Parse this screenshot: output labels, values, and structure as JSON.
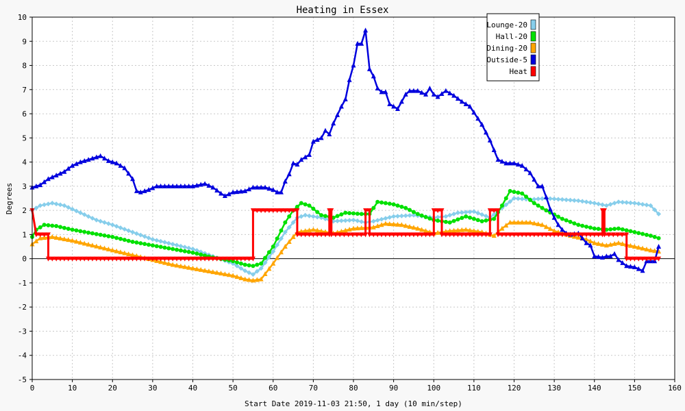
{
  "chart_data": {
    "type": "line",
    "title": "Heating in Essex",
    "xlabel": "Start Date 2019-11-03 21:50, 1 day (10 min/step)",
    "ylabel": "Degrees",
    "xlim": [
      0,
      160
    ],
    "ylim": [
      -5,
      10
    ],
    "x_ticks": [
      0,
      10,
      20,
      30,
      40,
      50,
      60,
      70,
      80,
      90,
      100,
      110,
      120,
      130,
      140,
      150,
      160
    ],
    "y_ticks": [
      -5,
      -4,
      -3,
      -2,
      -1,
      0,
      1,
      2,
      3,
      4,
      5,
      6,
      7,
      8,
      9,
      10
    ],
    "grid": true,
    "legend_position": "top-right",
    "series": [
      {
        "name": "Lounge-20",
        "color": "#87ceeb",
        "marker": "diamond",
        "points": [
          [
            0,
            2
          ],
          [
            2,
            2.2
          ],
          [
            5,
            2.3
          ],
          [
            8,
            2.2
          ],
          [
            12,
            1.9
          ],
          [
            16,
            1.6
          ],
          [
            20,
            1.4
          ],
          [
            25,
            1.1
          ],
          [
            30,
            0.8
          ],
          [
            35,
            0.6
          ],
          [
            40,
            0.4
          ],
          [
            45,
            0.1
          ],
          [
            50,
            -0.2
          ],
          [
            53,
            -0.5
          ],
          [
            55,
            -0.65
          ],
          [
            57,
            -0.4
          ],
          [
            60,
            0.3
          ],
          [
            63,
            1.1
          ],
          [
            66,
            1.7
          ],
          [
            68,
            1.8
          ],
          [
            72,
            1.7
          ],
          [
            75,
            1.55
          ],
          [
            80,
            1.6
          ],
          [
            83,
            1.5
          ],
          [
            85,
            1.55
          ],
          [
            90,
            1.75
          ],
          [
            95,
            1.8
          ],
          [
            100,
            1.7
          ],
          [
            103,
            1.75
          ],
          [
            106,
            1.9
          ],
          [
            110,
            1.95
          ],
          [
            114,
            1.7
          ],
          [
            117,
            2.1
          ],
          [
            120,
            2.5
          ],
          [
            124,
            2.45
          ],
          [
            128,
            2.5
          ],
          [
            132,
            2.45
          ],
          [
            136,
            2.4
          ],
          [
            140,
            2.3
          ],
          [
            143,
            2.2
          ],
          [
            146,
            2.35
          ],
          [
            150,
            2.3
          ],
          [
            154,
            2.2
          ],
          [
            156,
            1.85
          ]
        ]
      },
      {
        "name": "Hall-20",
        "color": "#00e000",
        "marker": "circle",
        "points": [
          [
            0,
            0.9
          ],
          [
            1,
            1.2
          ],
          [
            3,
            1.4
          ],
          [
            6,
            1.35
          ],
          [
            10,
            1.2
          ],
          [
            15,
            1.05
          ],
          [
            20,
            0.9
          ],
          [
            25,
            0.7
          ],
          [
            30,
            0.55
          ],
          [
            35,
            0.4
          ],
          [
            40,
            0.25
          ],
          [
            45,
            0.05
          ],
          [
            50,
            -0.1
          ],
          [
            53,
            -0.25
          ],
          [
            55,
            -0.3
          ],
          [
            57,
            -0.2
          ],
          [
            60,
            0.5
          ],
          [
            63,
            1.5
          ],
          [
            65,
            2
          ],
          [
            67,
            2.3
          ],
          [
            69,
            2.2
          ],
          [
            72,
            1.8
          ],
          [
            75,
            1.7
          ],
          [
            78,
            1.9
          ],
          [
            82,
            1.85
          ],
          [
            84,
            1.85
          ],
          [
            86,
            2.35
          ],
          [
            90,
            2.25
          ],
          [
            93,
            2.1
          ],
          [
            96,
            1.85
          ],
          [
            100,
            1.6
          ],
          [
            104,
            1.5
          ],
          [
            108,
            1.75
          ],
          [
            112,
            1.55
          ],
          [
            115,
            1.65
          ],
          [
            117,
            2.2
          ],
          [
            119,
            2.8
          ],
          [
            122,
            2.7
          ],
          [
            125,
            2.3
          ],
          [
            128,
            2.0
          ],
          [
            132,
            1.65
          ],
          [
            136,
            1.4
          ],
          [
            140,
            1.25
          ],
          [
            143,
            1.2
          ],
          [
            146,
            1.25
          ],
          [
            150,
            1.1
          ],
          [
            154,
            0.95
          ],
          [
            156,
            0.85
          ]
        ]
      },
      {
        "name": "Dining-20",
        "color": "#ffa500",
        "marker": "triangle",
        "points": [
          [
            0,
            0.6
          ],
          [
            2,
            0.85
          ],
          [
            5,
            0.9
          ],
          [
            10,
            0.75
          ],
          [
            15,
            0.55
          ],
          [
            20,
            0.35
          ],
          [
            25,
            0.15
          ],
          [
            30,
            -0.05
          ],
          [
            35,
            -0.25
          ],
          [
            40,
            -0.4
          ],
          [
            45,
            -0.55
          ],
          [
            50,
            -0.7
          ],
          [
            53,
            -0.85
          ],
          [
            55,
            -0.9
          ],
          [
            57,
            -0.85
          ],
          [
            60,
            -0.2
          ],
          [
            63,
            0.5
          ],
          [
            66,
            1.1
          ],
          [
            70,
            1.2
          ],
          [
            75,
            1.05
          ],
          [
            80,
            1.25
          ],
          [
            85,
            1.3
          ],
          [
            88,
            1.45
          ],
          [
            92,
            1.4
          ],
          [
            96,
            1.25
          ],
          [
            100,
            1.05
          ],
          [
            104,
            1.15
          ],
          [
            108,
            1.2
          ],
          [
            112,
            1.1
          ],
          [
            115,
            0.95
          ],
          [
            117,
            1.25
          ],
          [
            119,
            1.5
          ],
          [
            124,
            1.5
          ],
          [
            127,
            1.4
          ],
          [
            130,
            1.15
          ],
          [
            134,
            0.95
          ],
          [
            138,
            0.8
          ],
          [
            140,
            0.65
          ],
          [
            143,
            0.55
          ],
          [
            146,
            0.65
          ],
          [
            150,
            0.5
          ],
          [
            154,
            0.35
          ],
          [
            156,
            0.3
          ]
        ]
      },
      {
        "name": "Outside-5",
        "color": "#0000dd",
        "marker": "triangle",
        "points": [
          [
            0,
            2.95
          ],
          [
            2,
            3.05
          ],
          [
            4,
            3.3
          ],
          [
            6,
            3.45
          ],
          [
            8,
            3.6
          ],
          [
            10,
            3.85
          ],
          [
            12,
            4.0
          ],
          [
            14,
            4.1
          ],
          [
            16,
            4.2
          ],
          [
            17,
            4.25
          ],
          [
            19,
            4.05
          ],
          [
            21,
            3.95
          ],
          [
            23,
            3.75
          ],
          [
            25,
            3.3
          ],
          [
            26,
            2.8
          ],
          [
            27,
            2.75
          ],
          [
            29,
            2.85
          ],
          [
            31,
            3.0
          ],
          [
            35,
            3.0
          ],
          [
            40,
            3.0
          ],
          [
            43,
            3.1
          ],
          [
            45,
            2.95
          ],
          [
            47,
            2.7
          ],
          [
            48,
            2.6
          ],
          [
            50,
            2.75
          ],
          [
            53,
            2.8
          ],
          [
            55,
            2.95
          ],
          [
            58,
            2.95
          ],
          [
            60,
            2.85
          ],
          [
            61,
            2.75
          ],
          [
            62,
            2.75
          ],
          [
            63,
            3.2
          ],
          [
            64,
            3.5
          ],
          [
            65,
            3.95
          ],
          [
            66,
            3.9
          ],
          [
            67,
            4.1
          ],
          [
            69,
            4.3
          ],
          [
            70,
            4.85
          ],
          [
            72,
            5.0
          ],
          [
            73,
            5.3
          ],
          [
            74,
            5.15
          ],
          [
            75,
            5.6
          ],
          [
            77,
            6.3
          ],
          [
            78,
            6.6
          ],
          [
            79,
            7.4
          ],
          [
            80,
            8.0
          ],
          [
            81,
            8.9
          ],
          [
            82,
            8.9
          ],
          [
            83,
            9.45
          ],
          [
            84,
            7.85
          ],
          [
            85,
            7.55
          ],
          [
            86,
            7.05
          ],
          [
            87,
            6.9
          ],
          [
            88,
            6.9
          ],
          [
            89,
            6.4
          ],
          [
            91,
            6.2
          ],
          [
            93,
            6.8
          ],
          [
            94,
            6.95
          ],
          [
            96,
            6.95
          ],
          [
            98,
            6.8
          ],
          [
            99,
            7.05
          ],
          [
            100,
            6.8
          ],
          [
            101,
            6.7
          ],
          [
            103,
            6.95
          ],
          [
            105,
            6.75
          ],
          [
            107,
            6.5
          ],
          [
            109,
            6.3
          ],
          [
            110,
            6.05
          ],
          [
            112,
            5.55
          ],
          [
            114,
            4.9
          ],
          [
            116,
            4.1
          ],
          [
            118,
            3.95
          ],
          [
            120,
            3.95
          ],
          [
            122,
            3.85
          ],
          [
            124,
            3.55
          ],
          [
            126,
            3.0
          ],
          [
            127,
            3.0
          ],
          [
            128,
            2.55
          ],
          [
            129,
            2.05
          ],
          [
            130,
            1.7
          ],
          [
            131,
            1.4
          ],
          [
            132,
            1.2
          ],
          [
            133,
            1.05
          ],
          [
            134,
            1.0
          ],
          [
            136,
            1.05
          ],
          [
            138,
            0.65
          ],
          [
            139,
            0.55
          ],
          [
            140,
            0.1
          ],
          [
            142,
            0.05
          ],
          [
            143,
            0.1
          ],
          [
            144,
            0.1
          ],
          [
            145,
            0.2
          ],
          [
            146,
            -0.05
          ],
          [
            148,
            -0.3
          ],
          [
            150,
            -0.35
          ],
          [
            152,
            -0.5
          ],
          [
            153,
            -0.1
          ],
          [
            155,
            -0.1
          ],
          [
            156,
            0.5
          ]
        ]
      },
      {
        "name": "Heat",
        "color": "#ff0000",
        "marker": "triangle-down",
        "points": [
          [
            0,
            2
          ],
          [
            1,
            1
          ],
          [
            4,
            1
          ],
          [
            4,
            0
          ],
          [
            55,
            0
          ],
          [
            55,
            2
          ],
          [
            66,
            2
          ],
          [
            66,
            1
          ],
          [
            74,
            1
          ],
          [
            74,
            2
          ],
          [
            74.5,
            2
          ],
          [
            74.5,
            1
          ],
          [
            83,
            1
          ],
          [
            83,
            2
          ],
          [
            84,
            2
          ],
          [
            84,
            1
          ],
          [
            100,
            1
          ],
          [
            100,
            2
          ],
          [
            102,
            2
          ],
          [
            102,
            1
          ],
          [
            114,
            1
          ],
          [
            114,
            2
          ],
          [
            116,
            2
          ],
          [
            116,
            1
          ],
          [
            142,
            1
          ],
          [
            142,
            2
          ],
          [
            142.5,
            2
          ],
          [
            142.5,
            1
          ],
          [
            148,
            1
          ],
          [
            148,
            0
          ],
          [
            156,
            0
          ]
        ]
      }
    ]
  }
}
